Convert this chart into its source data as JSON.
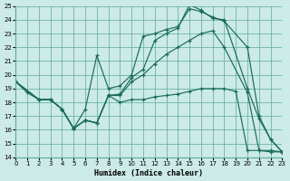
{
  "xlabel": "Humidex (Indice chaleur)",
  "bg_color": "#cceae7",
  "grid_color": "#5aaa99",
  "line_color": "#1a6b5a",
  "xlim": [
    0,
    23
  ],
  "ylim": [
    14,
    25
  ],
  "xticks": [
    0,
    1,
    2,
    3,
    4,
    5,
    6,
    7,
    8,
    9,
    10,
    11,
    12,
    13,
    14,
    15,
    16,
    17,
    18,
    19,
    20,
    21,
    22,
    23
  ],
  "yticks": [
    14,
    15,
    16,
    17,
    18,
    19,
    20,
    21,
    22,
    23,
    24,
    25
  ],
  "line1_x": [
    0,
    1,
    2,
    3,
    4,
    5,
    6,
    7,
    8,
    9,
    10,
    11,
    12,
    13,
    14,
    15,
    16,
    17,
    18,
    20,
    21,
    22,
    23
  ],
  "line1_y": [
    19.5,
    18.7,
    18.2,
    18.2,
    17.5,
    16.1,
    17.5,
    21.4,
    19.0,
    19.2,
    20.0,
    22.8,
    23.0,
    23.3,
    23.5,
    24.8,
    24.6,
    24.2,
    23.9,
    22.0,
    17.0,
    15.3,
    14.4
  ],
  "line2_x": [
    0,
    2,
    3,
    4,
    5,
    6,
    7,
    8,
    9,
    10,
    11,
    12,
    13,
    14,
    15,
    16,
    17,
    18,
    20,
    21,
    22,
    23
  ],
  "line2_y": [
    19.5,
    18.2,
    18.2,
    17.5,
    16.1,
    16.7,
    16.5,
    18.5,
    18.6,
    19.8,
    20.4,
    22.5,
    23.0,
    23.4,
    25.1,
    24.7,
    24.1,
    24.0,
    19.0,
    16.8,
    15.3,
    14.4
  ],
  "line3_x": [
    0,
    2,
    3,
    4,
    5,
    6,
    7,
    8,
    9,
    10,
    11,
    12,
    13,
    14,
    15,
    16,
    17,
    18,
    20,
    21,
    22,
    23
  ],
  "line3_y": [
    19.5,
    18.2,
    18.2,
    17.5,
    16.1,
    16.7,
    16.5,
    18.5,
    18.5,
    19.5,
    20.0,
    20.8,
    21.5,
    22.0,
    22.5,
    23.0,
    23.2,
    22.0,
    18.7,
    14.5,
    14.5,
    14.4
  ],
  "line4_x": [
    0,
    2,
    3,
    4,
    5,
    6,
    7,
    8,
    9,
    10,
    11,
    12,
    13,
    14,
    15,
    16,
    17,
    18,
    19,
    20,
    21,
    22,
    23
  ],
  "line4_y": [
    19.5,
    18.2,
    18.2,
    17.5,
    16.1,
    16.7,
    16.5,
    18.5,
    18.0,
    18.2,
    18.2,
    18.4,
    18.5,
    18.6,
    18.8,
    19.0,
    19.0,
    19.0,
    18.8,
    14.5,
    14.5,
    14.4,
    14.4
  ]
}
